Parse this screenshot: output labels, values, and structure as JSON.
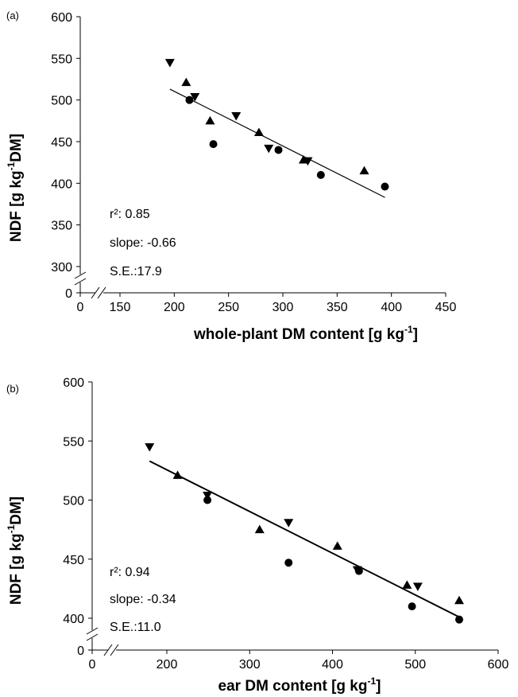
{
  "chart_data": [
    {
      "type": "scatter",
      "panel_label": "(a)",
      "xlabel": "whole-plant DM content [g kg",
      "xlabel_sup": "-1",
      "xlabel_end": "]",
      "ylabel": "NDF  [g kg",
      "ylabel_sup": "-1",
      "ylabel_end": "DM]",
      "xlim": [
        0,
        450
      ],
      "ylim": [
        0,
        600
      ],
      "x_ticks": [
        0,
        150,
        200,
        250,
        300,
        350,
        400,
        450
      ],
      "y_ticks": [
        0,
        300,
        350,
        400,
        450,
        500,
        550,
        600
      ],
      "x_axis_break": true,
      "y_axis_break": true,
      "series": [
        {
          "marker": "triangle-down",
          "points": [
            [
              196,
              545
            ],
            [
              219,
              504
            ],
            [
              257,
              481
            ],
            [
              287,
              442
            ],
            [
              323,
              427
            ]
          ]
        },
        {
          "marker": "triangle-up",
          "points": [
            [
              211,
              521
            ],
            [
              233,
              475
            ],
            [
              278,
              461
            ],
            [
              319,
              428
            ],
            [
              375,
              415
            ]
          ]
        },
        {
          "marker": "circle",
          "points": [
            [
              214,
              500
            ],
            [
              236,
              447
            ],
            [
              296,
              440
            ],
            [
              335,
              410
            ],
            [
              394,
              396
            ]
          ]
        }
      ],
      "trendline": {
        "x": [
          196,
          394
        ],
        "y": [
          513,
          383
        ]
      },
      "stats": {
        "r2": "r²: 0.85",
        "slope": "slope: -0.66",
        "se": "S.E.:17.9"
      }
    },
    {
      "type": "scatter",
      "panel_label": "(b)",
      "xlabel": "ear DM content [g kg",
      "xlabel_sup": "-1",
      "xlabel_end": "]",
      "ylabel": "NDF  [g kg",
      "ylabel_sup": "-1",
      "ylabel_end": "DM]",
      "xlim": [
        0,
        600
      ],
      "ylim": [
        0,
        600
      ],
      "x_ticks": [
        0,
        200,
        300,
        400,
        500,
        600
      ],
      "y_ticks": [
        0,
        400,
        450,
        500,
        550,
        600
      ],
      "x_axis_break": true,
      "y_axis_break": true,
      "series": [
        {
          "marker": "triangle-down",
          "points": [
            [
              166,
              545
            ],
            [
              249,
              504
            ],
            [
              347,
              481
            ],
            [
              430,
              441
            ],
            [
              503,
              427
            ]
          ]
        },
        {
          "marker": "triangle-up",
          "points": [
            [
              213,
              521
            ],
            [
              312,
              475
            ],
            [
              406,
              461
            ],
            [
              490,
              428
            ],
            [
              553,
              415
            ]
          ]
        },
        {
          "marker": "circle",
          "points": [
            [
              249,
              500
            ],
            [
              347,
              447
            ],
            [
              432,
              440
            ],
            [
              496,
              410
            ],
            [
              553,
              396
            ]
          ]
        }
      ],
      "trendline": {
        "x": [
          166,
          553
        ],
        "y": [
          533,
          401
        ]
      },
      "stats": {
        "r2": "r²: 0.94",
        "slope": "slope: -0.34",
        "se": "S.E.:11.0"
      }
    }
  ],
  "colors": {
    "ink": "#000000",
    "background": "#ffffff"
  }
}
